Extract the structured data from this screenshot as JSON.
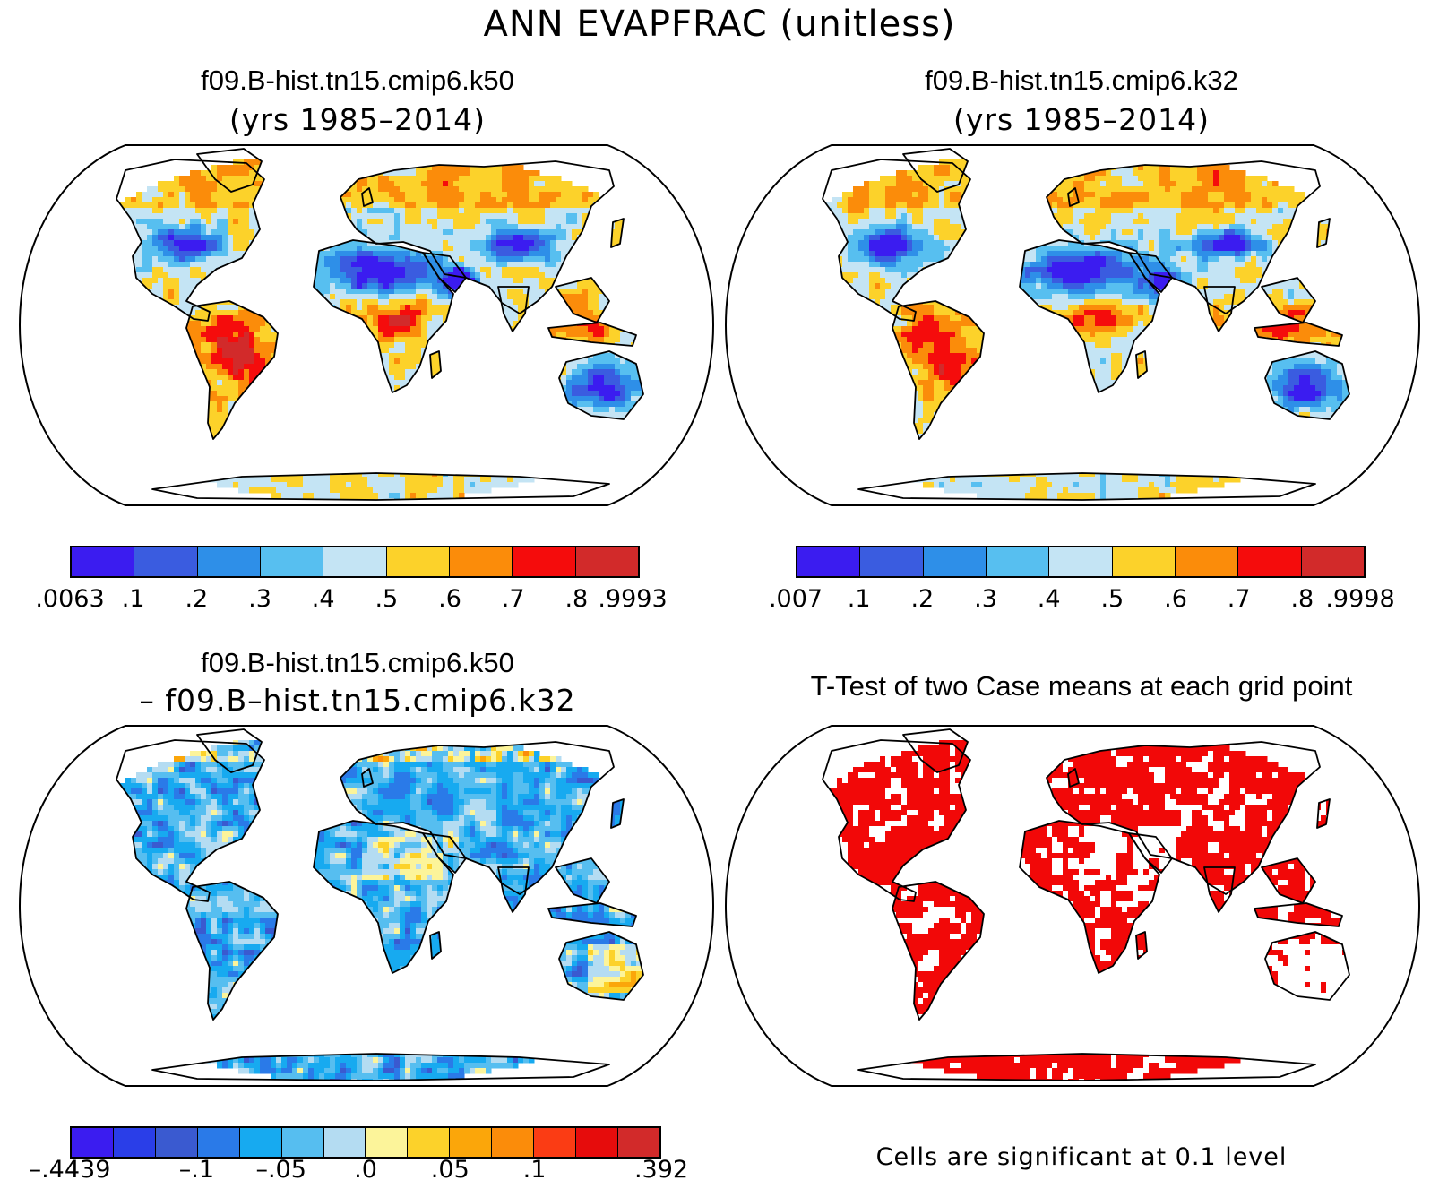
{
  "title": "ANN EVAPFRAC (unitless)",
  "panels": [
    {
      "id": "k50",
      "title": "f09.B-hist.tn15.cmip6.k50",
      "subtitle": "(yrs 1985–2014)",
      "colorbar": {
        "colors": [
          "#3b1cf0",
          "#3a5ce0",
          "#2e8fe8",
          "#57bff0",
          "#c4e4f4",
          "#fcd22a",
          "#fb8c0a",
          "#f50c0c",
          "#d22a2a"
        ],
        "ticks": [
          ".0063",
          ".1",
          ".2",
          ".3",
          ".4",
          ".5",
          ".6",
          ".7",
          ".8",
          ".9993"
        ]
      }
    },
    {
      "id": "k32",
      "title": "f09.B-hist.tn15.cmip6.k32",
      "subtitle": "(yrs 1985–2014)",
      "colorbar": {
        "colors": [
          "#3b1cf0",
          "#3a5ce0",
          "#2e8fe8",
          "#57bff0",
          "#c4e4f4",
          "#fcd22a",
          "#fb8c0a",
          "#f50c0c",
          "#d22a2a"
        ],
        "ticks": [
          ".007",
          ".1",
          ".2",
          ".3",
          ".4",
          ".5",
          ".6",
          ".7",
          ".8",
          ".9998"
        ]
      }
    },
    {
      "id": "diff",
      "title": "f09.B-hist.tn15.cmip6.k50",
      "subtitle": "– f09.B–hist.tn15.cmip6.k32",
      "colorbar": {
        "colors": [
          "#3b1cf0",
          "#2a3ee8",
          "#3a5ad0",
          "#2a7ae8",
          "#17aaf0",
          "#56bef0",
          "#b4dcf2",
          "#fcf49a",
          "#fcd22a",
          "#fba60a",
          "#fb8c0a",
          "#fb3c14",
          "#e60c0c",
          "#d22a2a"
        ],
        "ticks": [
          "–.4439",
          "–.1",
          "–.05",
          ".0",
          ".05",
          ".1",
          ".392"
        ]
      }
    },
    {
      "id": "ttest",
      "title": "T-Test of two Case means at each grid point",
      "note": "Cells are significant at 0.1 level",
      "fill_color": "#f20808"
    }
  ]
}
